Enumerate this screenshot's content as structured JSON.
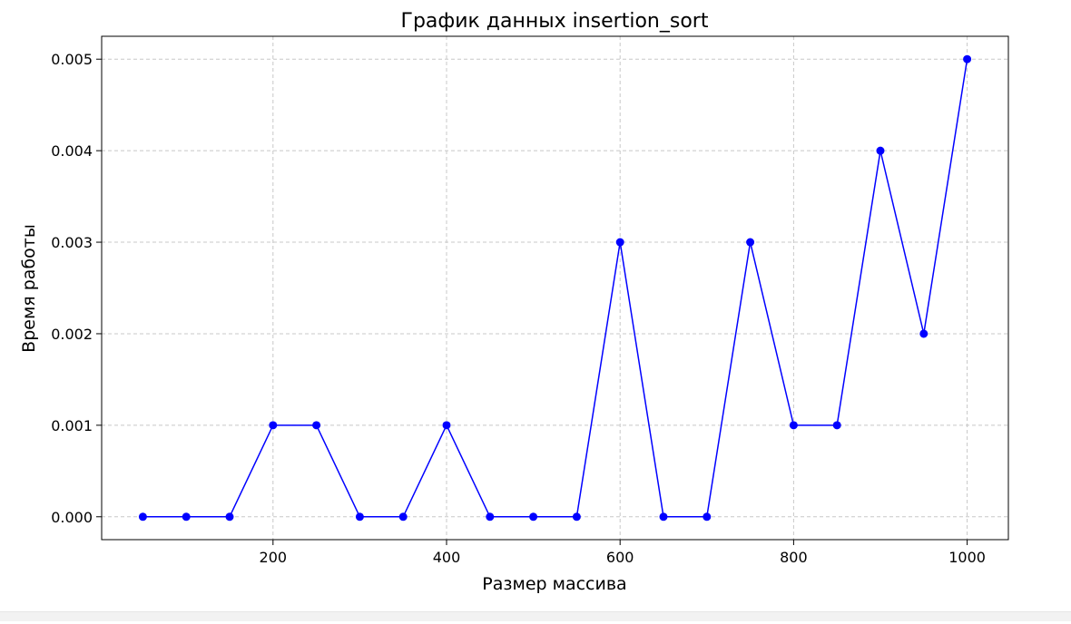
{
  "chart_data": {
    "type": "line",
    "title": "График данных insertion_sort",
    "xlabel": "Размер массива",
    "ylabel": "Время работы",
    "x": [
      50,
      100,
      150,
      200,
      250,
      300,
      350,
      400,
      450,
      500,
      550,
      600,
      650,
      700,
      750,
      800,
      850,
      900,
      950,
      1000
    ],
    "series": [
      {
        "values": [
          0.0,
          0.0,
          0.0,
          0.001,
          0.001,
          0.0,
          0.0,
          0.001,
          0.0,
          0.0,
          0.0,
          0.003,
          0.0,
          0.0,
          0.003,
          0.001,
          0.001,
          0.004,
          0.002,
          0.005
        ],
        "color": "#0000ff",
        "marker": "circle"
      }
    ],
    "xlim": [
      2.5,
      1047.5
    ],
    "ylim": [
      -0.00025,
      0.00525
    ],
    "xticks": [
      200,
      400,
      600,
      800,
      1000
    ],
    "xtick_labels": [
      "200",
      "400",
      "600",
      "800",
      "1000"
    ],
    "yticks": [
      0.0,
      0.001,
      0.002,
      0.003,
      0.004,
      0.005
    ],
    "ytick_labels": [
      "0.000",
      "0.001",
      "0.002",
      "0.003",
      "0.004",
      "0.005"
    ],
    "grid": true,
    "grid_style": "dashed",
    "legend": "none"
  }
}
